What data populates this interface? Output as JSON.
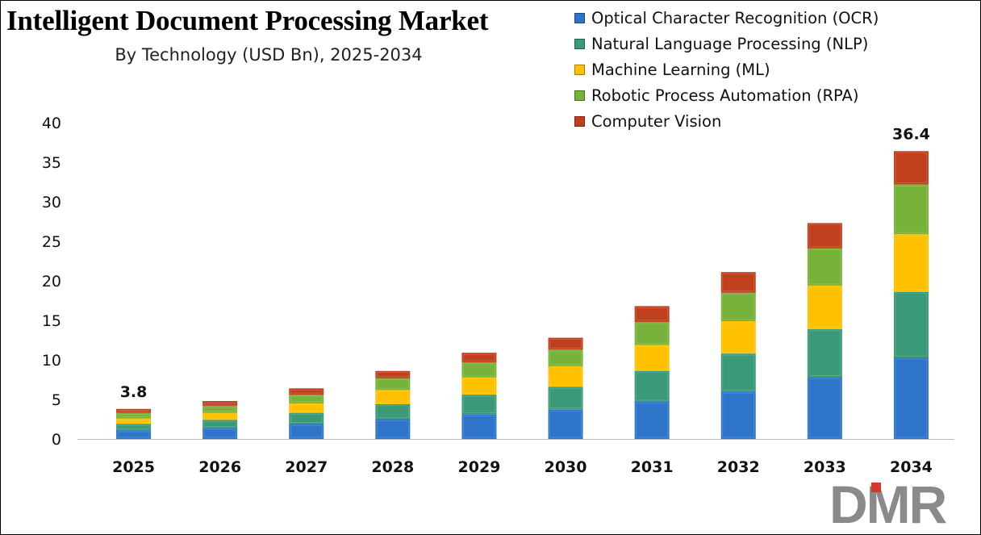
{
  "title": "Intelligent Document Processing Market",
  "subtitle": "By Technology (USD Bn), 2025-2034",
  "logo_text": "DMR",
  "colors": {
    "ocr": "#2e75c9",
    "nlp": "#3a9a78",
    "ml": "#ffc000",
    "rpa": "#77b23a",
    "cv": "#c0401e",
    "logo_grey": "#8a8a8a",
    "logo_red": "#d9362b"
  },
  "legend": [
    {
      "label": "Optical Character Recognition (OCR)",
      "color": "#2e75c9"
    },
    {
      "label": "Natural Language Processing (NLP)",
      "color": "#3a9a78"
    },
    {
      "label": "Machine Learning (ML)",
      "color": "#ffc000"
    },
    {
      "label": "Robotic Process Automation (RPA)",
      "color": "#77b23a"
    },
    {
      "label": "Computer Vision",
      "color": "#c0401e"
    }
  ],
  "chart_data": {
    "type": "bar",
    "stacked": true,
    "title": "Intelligent Document Processing Market",
    "subtitle": "By Technology (USD Bn), 2025-2034",
    "categories": [
      "2025",
      "2026",
      "2027",
      "2028",
      "2029",
      "2030",
      "2031",
      "2032",
      "2033",
      "2034"
    ],
    "series": [
      {
        "name": "Optical Character Recognition (OCR)",
        "values": [
          1.1,
          1.4,
          1.9,
          2.5,
          3.1,
          3.7,
          4.7,
          6.0,
          7.8,
          10.3
        ]
      },
      {
        "name": "Natural Language Processing (NLP)",
        "values": [
          0.8,
          1.0,
          1.4,
          1.9,
          2.5,
          2.9,
          3.9,
          4.8,
          6.1,
          8.3
        ]
      },
      {
        "name": "Machine Learning (ML)",
        "values": [
          0.7,
          0.9,
          1.2,
          1.8,
          2.2,
          2.6,
          3.3,
          4.1,
          5.5,
          7.3
        ]
      },
      {
        "name": "Robotic Process Automation (RPA)",
        "values": [
          0.7,
          0.9,
          1.1,
          1.5,
          1.9,
          2.1,
          2.9,
          3.6,
          4.7,
          6.3
        ]
      },
      {
        "name": "Computer Vision",
        "values": [
          0.5,
          0.6,
          0.8,
          0.9,
          1.2,
          1.5,
          2.0,
          2.6,
          3.2,
          4.2
        ]
      }
    ],
    "totals": [
      3.8,
      4.8,
      6.4,
      8.6,
      10.9,
      12.8,
      16.8,
      21.1,
      27.3,
      36.4
    ],
    "data_labels": [
      {
        "category": "2025",
        "text": "3.8"
      },
      {
        "category": "2034",
        "text": "36.4"
      }
    ],
    "y_ticks": [
      "0",
      "5",
      "10",
      "15",
      "20",
      "25",
      "30",
      "35",
      "40"
    ],
    "ylim": [
      0,
      40
    ],
    "xlabel": "",
    "ylabel": "",
    "grid": false,
    "legend_position": "top-right"
  }
}
